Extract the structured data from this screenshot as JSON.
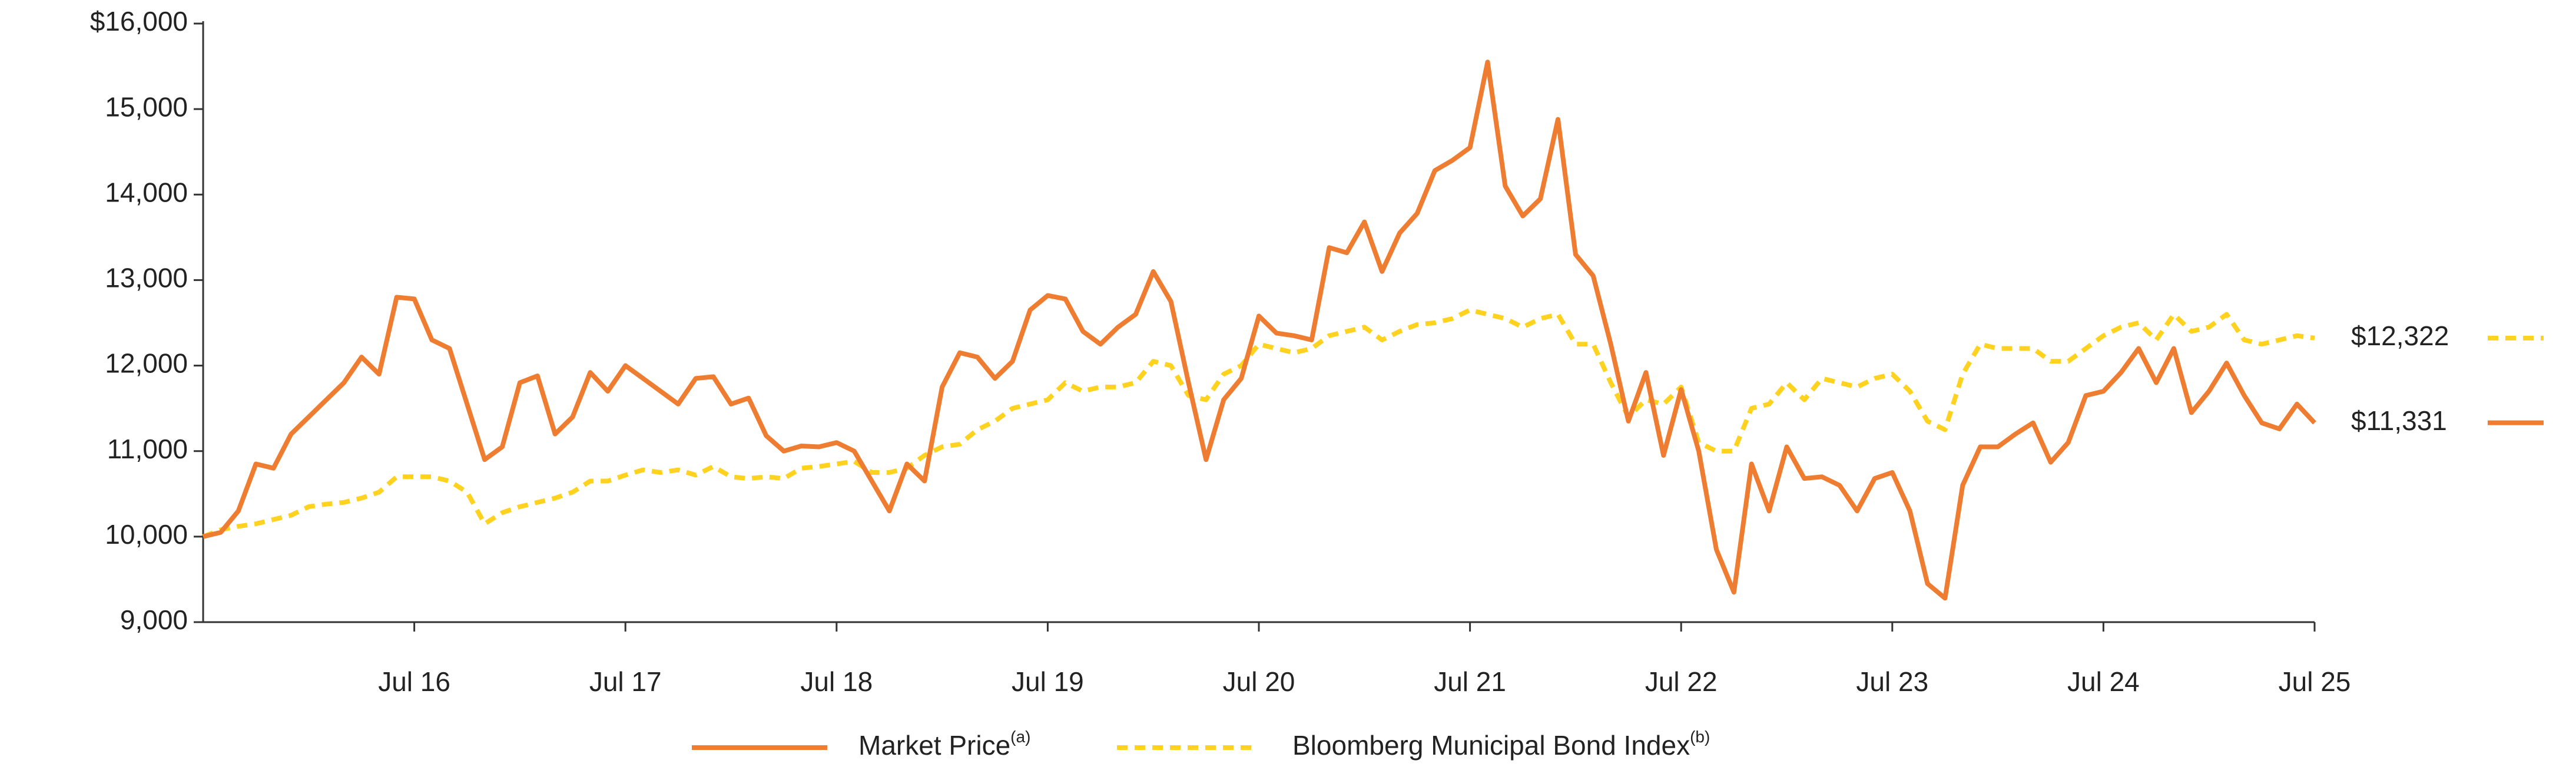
{
  "chart_data": {
    "type": "line",
    "categories": [
      null,
      null,
      null,
      null,
      null,
      null,
      null,
      null,
      null,
      null,
      null,
      null,
      "Jul 16",
      null,
      null,
      null,
      null,
      null,
      null,
      null,
      null,
      null,
      null,
      null,
      "Jul 17",
      null,
      null,
      null,
      null,
      null,
      null,
      null,
      null,
      null,
      null,
      null,
      "Jul 18",
      null,
      null,
      null,
      null,
      null,
      null,
      null,
      null,
      null,
      null,
      null,
      "Jul 19",
      null,
      null,
      null,
      null,
      null,
      null,
      null,
      null,
      null,
      null,
      null,
      "Jul 20",
      null,
      null,
      null,
      null,
      null,
      null,
      null,
      null,
      null,
      null,
      null,
      "Jul 21",
      null,
      null,
      null,
      null,
      null,
      null,
      null,
      null,
      null,
      null,
      null,
      "Jul 22",
      null,
      null,
      null,
      null,
      null,
      null,
      null,
      null,
      null,
      null,
      null,
      "Jul 23",
      null,
      null,
      null,
      null,
      null,
      null,
      null,
      null,
      null,
      null,
      null,
      "Jul 24",
      null,
      null,
      null,
      null,
      null,
      null,
      null,
      null,
      null,
      null,
      null,
      "Jul 25"
    ],
    "series": [
      {
        "name": "Market Price",
        "name_note": "(a)",
        "color": "#ee7d31",
        "dashed": false,
        "values": [
          10000,
          10050,
          10300,
          10850,
          10800,
          11200,
          11400,
          11600,
          11800,
          12100,
          11900,
          12800,
          12780,
          12300,
          12200,
          11550,
          10900,
          11050,
          11800,
          11880,
          11200,
          11400,
          11920,
          11700,
          12000,
          11850,
          11700,
          11550,
          11850,
          11870,
          11550,
          11620,
          11180,
          11000,
          11060,
          11050,
          11100,
          11000,
          10650,
          10300,
          10850,
          10650,
          11750,
          12150,
          12100,
          11850,
          12050,
          12650,
          12820,
          12780,
          12400,
          12250,
          12450,
          12600,
          13100,
          12750,
          11800,
          10900,
          11600,
          11850,
          12580,
          12380,
          12350,
          12300,
          13380,
          13320,
          13680,
          13100,
          13550,
          13780,
          14280,
          14400,
          14550,
          15550,
          14100,
          13750,
          13950,
          14880,
          13300,
          13050,
          12250,
          11350,
          11920,
          10950,
          11720,
          11000,
          9850,
          9350,
          10850,
          10300,
          11050,
          10680,
          10700,
          10600,
          10300,
          10680,
          10750,
          10300,
          9450,
          9280,
          10600,
          11050,
          11050,
          11200,
          11330,
          10870,
          11100,
          11650,
          11700,
          11920,
          12200,
          11800,
          12200,
          11450,
          11700,
          12030,
          11650,
          11330,
          11260,
          11550,
          11331
        ],
        "value_labels": [
          null,
          null,
          null,
          null,
          null,
          null,
          null,
          null,
          null,
          null,
          null,
          null,
          null,
          null,
          null,
          null,
          null,
          null,
          null,
          null,
          null,
          null,
          null,
          null,
          null,
          null,
          null,
          null,
          null,
          null,
          null,
          null,
          null,
          null,
          null,
          null,
          null,
          null,
          null,
          null,
          null,
          null,
          null,
          null,
          null,
          null,
          null,
          null,
          null,
          null,
          null,
          null,
          null,
          null,
          null,
          null,
          null,
          null,
          null,
          null,
          null,
          null,
          null,
          null,
          null,
          null,
          null,
          null,
          null,
          null,
          null,
          null,
          null,
          null,
          null,
          null,
          null,
          null,
          null,
          null,
          null,
          null,
          null,
          null,
          null,
          null,
          null,
          null,
          null,
          null,
          null,
          null,
          null,
          null,
          null,
          null,
          null,
          null,
          null,
          null,
          null,
          null,
          null,
          null,
          null,
          null,
          null,
          null,
          null,
          null,
          null,
          null,
          null,
          null,
          null,
          null,
          null,
          null,
          null,
          null,
          "$11,331"
        ]
      },
      {
        "name": "Bloomberg Municipal Bond Index",
        "name_note": "(b)",
        "color": "#ffd21f",
        "dashed": true,
        "values": [
          10000,
          10080,
          10120,
          10150,
          10200,
          10250,
          10350,
          10380,
          10400,
          10450,
          10520,
          10700,
          10700,
          10700,
          10650,
          10520,
          10150,
          10280,
          10350,
          10400,
          10450,
          10520,
          10650,
          10650,
          10720,
          10780,
          10750,
          10780,
          10720,
          10820,
          10700,
          10680,
          10700,
          10680,
          10800,
          10820,
          10850,
          10880,
          10750,
          10750,
          10800,
          10950,
          11050,
          11080,
          11250,
          11350,
          11500,
          11550,
          11600,
          11800,
          11700,
          11750,
          11750,
          11800,
          12050,
          12000,
          11650,
          11600,
          11900,
          12000,
          12250,
          12200,
          12150,
          12200,
          12350,
          12400,
          12450,
          12300,
          12400,
          12480,
          12500,
          12550,
          12650,
          12600,
          12550,
          12450,
          12550,
          12600,
          12250,
          12250,
          11800,
          11400,
          11600,
          11550,
          11750,
          11100,
          11000,
          11000,
          11500,
          11550,
          11800,
          11600,
          11850,
          11800,
          11750,
          11850,
          11900,
          11700,
          11350,
          11250,
          11900,
          12250,
          12200,
          12200,
          12200,
          12050,
          12050,
          12200,
          12350,
          12450,
          12500,
          12300,
          12600,
          12400,
          12450,
          12600,
          12300,
          12250,
          12300,
          12350,
          12322
        ],
        "value_labels": [
          null,
          null,
          null,
          null,
          null,
          null,
          null,
          null,
          null,
          null,
          null,
          null,
          null,
          null,
          null,
          null,
          null,
          null,
          null,
          null,
          null,
          null,
          null,
          null,
          null,
          null,
          null,
          null,
          null,
          null,
          null,
          null,
          null,
          null,
          null,
          null,
          null,
          null,
          null,
          null,
          null,
          null,
          null,
          null,
          null,
          null,
          null,
          null,
          null,
          null,
          null,
          null,
          null,
          null,
          null,
          null,
          null,
          null,
          null,
          null,
          null,
          null,
          null,
          null,
          null,
          null,
          null,
          null,
          null,
          null,
          null,
          null,
          null,
          null,
          null,
          null,
          null,
          null,
          null,
          null,
          null,
          null,
          null,
          null,
          null,
          null,
          null,
          null,
          null,
          null,
          null,
          null,
          null,
          null,
          null,
          null,
          null,
          null,
          null,
          null,
          null,
          null,
          null,
          null,
          null,
          null,
          null,
          null,
          null,
          null,
          null,
          null,
          null,
          null,
          null,
          null,
          null,
          null,
          null,
          null,
          "$12,322"
        ]
      }
    ],
    "ylim": [
      9000,
      16000
    ],
    "yticks": [
      {
        "value": 9000,
        "label": "9,000"
      },
      {
        "value": 10000,
        "label": "10,000"
      },
      {
        "value": 11000,
        "label": "11,000"
      },
      {
        "value": 12000,
        "label": "12,000"
      },
      {
        "value": 13000,
        "label": "13,000"
      },
      {
        "value": 14000,
        "label": "14,000"
      },
      {
        "value": 15000,
        "label": "15,000"
      },
      {
        "value": 16000,
        "label": "$16,000"
      }
    ],
    "grid": false
  }
}
